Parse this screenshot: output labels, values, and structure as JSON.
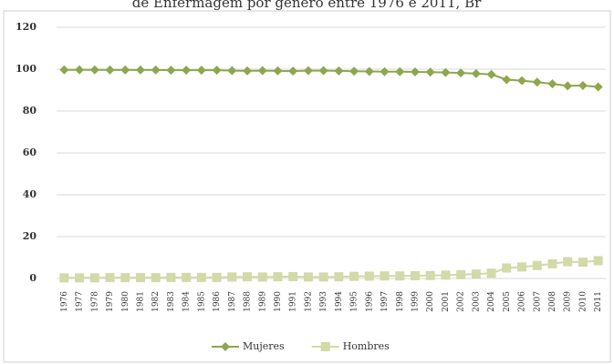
{
  "chart_data": {
    "type": "line",
    "title": "de Enfermagem por gênero entre 1976 e 2011, Br",
    "categories": [
      "1976",
      "1977",
      "1978",
      "1979",
      "1980",
      "1981",
      "1982",
      "1983",
      "1984",
      "1985",
      "1986",
      "1987",
      "1988",
      "1989",
      "1990",
      "1991",
      "1992",
      "1993",
      "1994",
      "1995",
      "1996",
      "1997",
      "1998",
      "1999",
      "2000",
      "2001",
      "2002",
      "2003",
      "2004",
      "2005",
      "2006",
      "2007",
      "2008",
      "2009",
      "2010",
      "2011"
    ],
    "series": [
      {
        "name": "Mujeres",
        "color": "#8ea64e",
        "marker": "diamond",
        "values": [
          99.7,
          99.7,
          99.7,
          99.6,
          99.6,
          99.6,
          99.6,
          99.5,
          99.5,
          99.5,
          99.5,
          99.3,
          99.2,
          99.3,
          99.2,
          99.1,
          99.3,
          99.3,
          99.2,
          99.0,
          98.9,
          98.8,
          98.8,
          98.7,
          98.6,
          98.4,
          98.2,
          97.9,
          97.5,
          95.0,
          94.5,
          93.8,
          93.0,
          92.0,
          92.2,
          91.5
        ]
      },
      {
        "name": "Hombres",
        "color": "#d3d9a8",
        "marker": "square",
        "values": [
          0.3,
          0.3,
          0.3,
          0.4,
          0.4,
          0.4,
          0.4,
          0.5,
          0.5,
          0.5,
          0.5,
          0.7,
          0.8,
          0.7,
          0.8,
          0.9,
          0.7,
          0.7,
          0.8,
          1.0,
          1.1,
          1.2,
          1.2,
          1.3,
          1.4,
          1.6,
          1.8,
          2.1,
          2.5,
          5.0,
          5.5,
          6.2,
          7.0,
          8.0,
          7.8,
          8.5
        ]
      }
    ],
    "ylim": [
      0,
      120
    ],
    "yticks": [
      0,
      20,
      40,
      60,
      80,
      100,
      120
    ],
    "grid": true,
    "legend": "bottom"
  }
}
